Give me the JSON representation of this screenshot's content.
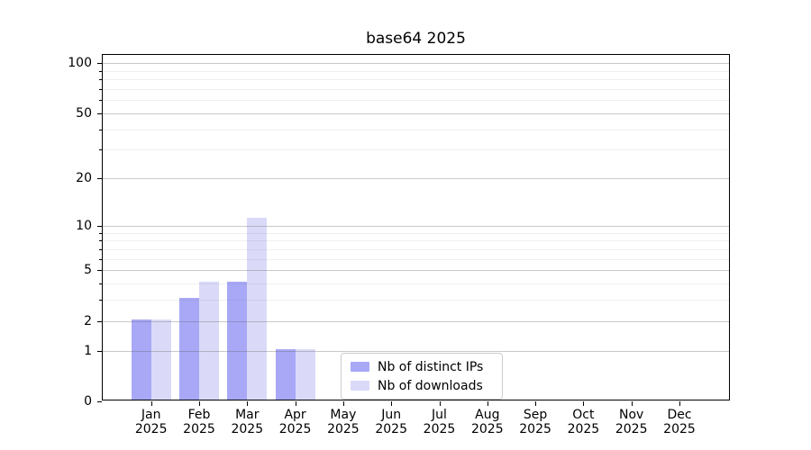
{
  "chart_data": {
    "type": "bar",
    "title": "base64 2025",
    "categories": [
      {
        "month": "Jan",
        "year": "2025"
      },
      {
        "month": "Feb",
        "year": "2025"
      },
      {
        "month": "Mar",
        "year": "2025"
      },
      {
        "month": "Apr",
        "year": "2025"
      },
      {
        "month": "May",
        "year": "2025"
      },
      {
        "month": "Jun",
        "year": "2025"
      },
      {
        "month": "Jul",
        "year": "2025"
      },
      {
        "month": "Aug",
        "year": "2025"
      },
      {
        "month": "Sep",
        "year": "2025"
      },
      {
        "month": "Oct",
        "year": "2025"
      },
      {
        "month": "Nov",
        "year": "2025"
      },
      {
        "month": "Dec",
        "year": "2025"
      }
    ],
    "series": [
      {
        "name": "Nb of distinct IPs",
        "color": "#a8a8f7",
        "values": [
          2,
          3,
          4,
          1,
          0,
          0,
          0,
          0,
          0,
          0,
          0,
          0
        ]
      },
      {
        "name": "Nb of downloads",
        "color": "#dadaf8",
        "values": [
          2,
          4,
          11,
          1,
          0,
          0,
          0,
          0,
          0,
          0,
          0,
          0
        ]
      }
    ],
    "xlabel": "",
    "ylabel": "",
    "yscale": "log1p",
    "ylim": [
      0,
      112
    ],
    "yticks_major": [
      0,
      1,
      2,
      5,
      10,
      20,
      50,
      100
    ],
    "yticks_minor": [
      3,
      4,
      6,
      7,
      8,
      9,
      30,
      40,
      60,
      70,
      80,
      90
    ],
    "grid": "horizontal, drawn over bars",
    "legend_position": "lower center"
  }
}
